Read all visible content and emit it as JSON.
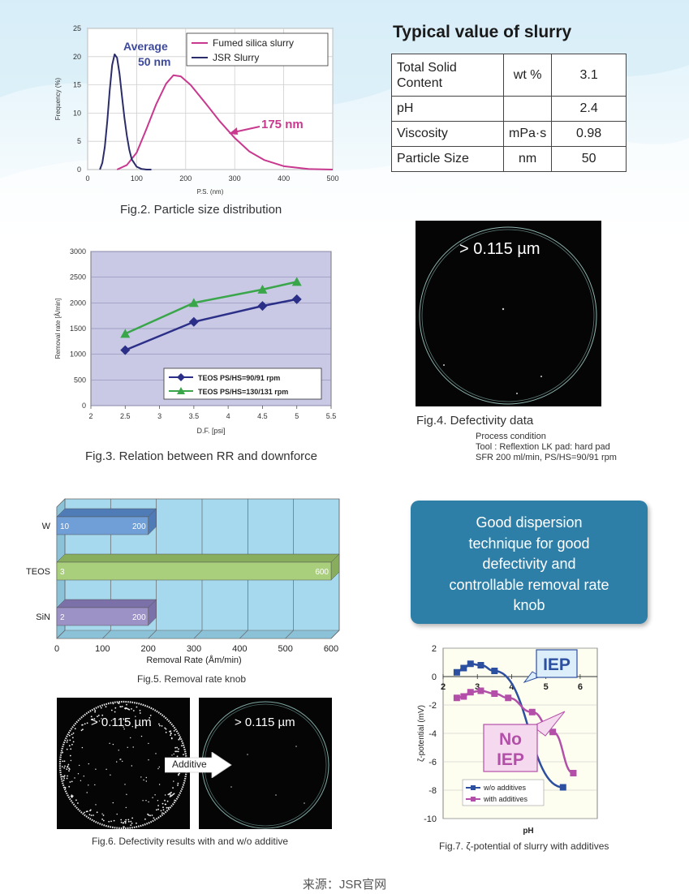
{
  "fig2": {
    "caption": "Fig.2. Particle size distribution",
    "xlabel": "P.S. (nm)",
    "ylabel": "Frequency (%)",
    "xticks": [
      "0",
      "100",
      "200",
      "300",
      "400",
      "500"
    ],
    "yticks": [
      "0",
      "5",
      "10",
      "15",
      "20",
      "25"
    ],
    "legend": [
      "Fumed silica slurry",
      "JSR Slurry"
    ],
    "ann_avg1": "Average",
    "ann_avg2": "50 nm",
    "ann_175": "175 nm",
    "colors": {
      "fumed": "#c8388e",
      "jsr": "#2b2d6b"
    }
  },
  "table": {
    "title": "Typical value of slurry",
    "rows": [
      {
        "label": "Total Solid Content",
        "unit": "wt %",
        "value": "3.1"
      },
      {
        "label": "pH",
        "unit": "",
        "value": "2.4"
      },
      {
        "label": "Viscosity",
        "unit": "mPa·s",
        "value": "0.98"
      },
      {
        "label": "Particle Size",
        "unit": "nm",
        "value": "50"
      }
    ]
  },
  "fig3": {
    "caption": "Fig.3. Relation between RR and downforce",
    "xlabel": "D.F. [psi]",
    "ylabel": "Removal rate [Å/min]",
    "xticks": [
      "2",
      "2.5",
      "3",
      "3.5",
      "4",
      "4.5",
      "5",
      "5.5"
    ],
    "yticks": [
      "0",
      "500",
      "1000",
      "1500",
      "2000",
      "2500",
      "3000"
    ],
    "legend": [
      "TEOS PS/HS=90/91 rpm",
      "TEOS PS/HS=130/131 rpm"
    ],
    "colors": {
      "s1": "#2b2f87",
      "s2": "#3aa64a"
    }
  },
  "fig4": {
    "label": "> 0.115 µm",
    "caption": "Fig.4. Defectivity data",
    "cond1": "Process condition",
    "cond2": "Tool : Reflextion LK pad: hard pad",
    "cond3": "SFR 200 ml/min, PS/HS=90/91 rpm"
  },
  "fig5": {
    "caption": "Fig.5. Removal rate knob",
    "xlabel": "Removal Rate (Åm/min)",
    "xticks": [
      "0",
      "100",
      "200",
      "300",
      "400",
      "500",
      "600"
    ],
    "categories": [
      "W",
      "TEOS",
      "SiN"
    ],
    "labels_left": [
      "10",
      "3",
      "2"
    ],
    "labels_right": [
      "200",
      "600",
      "200"
    ]
  },
  "good_box": {
    "lines": [
      "Good dispersion",
      "technique for good",
      "defectivity and",
      "controllable removal rate",
      "knob"
    ]
  },
  "fig6": {
    "label_left": "> 0.115 µm",
    "label_right": "> 0.115 µm",
    "arrow": "Additive",
    "caption": "Fig.6. Defectivity results with and w/o additive"
  },
  "fig7": {
    "caption": "Fig.7. ζ-potential of slurry with additives",
    "xlabel": "pH",
    "ylabel": "ζ-potential (mV)",
    "xticks": [
      "2",
      "3",
      "4",
      "5",
      "6"
    ],
    "yticks": [
      "2",
      "0",
      "-2",
      "-4",
      "-6",
      "-8",
      "-10"
    ],
    "legend": [
      "w/o additives",
      "with additives"
    ],
    "iep": "IEP",
    "noiep1": "No",
    "noiep2": "IEP",
    "colors": {
      "s1": "#2d4fa0",
      "s2": "#b34fa8"
    }
  },
  "source": "来源：JSR官网",
  "chart_data": [
    {
      "type": "line",
      "title": "Fig.2. Particle size distribution",
      "xlabel": "P.S. (nm)",
      "ylabel": "Frequency (%)",
      "xlim": [
        0,
        500
      ],
      "ylim": [
        0,
        25
      ],
      "grid": true,
      "legend_position": "top-right",
      "series": [
        {
          "name": "Fumed silica slurry",
          "x": [
            60,
            80,
            100,
            120,
            140,
            160,
            175,
            190,
            210,
            240,
            270,
            300,
            330,
            360,
            400,
            450,
            500
          ],
          "values": [
            0,
            0.8,
            3.0,
            7.2,
            11.6,
            15.2,
            16.7,
            16.5,
            15.0,
            11.8,
            8.5,
            5.6,
            3.2,
            1.7,
            0.6,
            0.1,
            0
          ]
        },
        {
          "name": "JSR Slurry",
          "x": [
            25,
            30,
            35,
            40,
            45,
            50,
            55,
            60,
            65,
            70,
            75,
            80,
            85,
            90,
            100,
            110,
            120,
            130
          ],
          "values": [
            0,
            1.2,
            4.0,
            8.5,
            14.0,
            18.5,
            20.4,
            19.8,
            17.0,
            13.0,
            9.2,
            6.0,
            3.5,
            1.8,
            0.5,
            0.1,
            0,
            0
          ]
        }
      ]
    },
    {
      "type": "line",
      "title": "Fig.3. Relation between RR and downforce",
      "xlabel": "D.F. [psi]",
      "ylabel": "Removal rate [Å/min]",
      "xlim": [
        2,
        5.5
      ],
      "ylim": [
        0,
        3000
      ],
      "grid": true,
      "legend_position": "bottom-right",
      "series": [
        {
          "name": "TEOS PS/HS=90/91 rpm",
          "x": [
            2.5,
            3.5,
            4.5,
            5
          ],
          "values": [
            1080,
            1630,
            1940,
            2070
          ]
        },
        {
          "name": "TEOS PS/HS=130/131 rpm",
          "x": [
            2.5,
            3.5,
            4.5,
            5
          ],
          "values": [
            1400,
            2000,
            2260,
            2410
          ]
        }
      ]
    },
    {
      "type": "bar",
      "title": "Fig.5. Removal rate knob",
      "orientation": "horizontal",
      "xlabel": "Removal Rate (Åm/min)",
      "xlim": [
        0,
        600
      ],
      "categories": [
        "W",
        "TEOS",
        "SiN"
      ],
      "series": [
        {
          "name": "min",
          "values": [
            10,
            3,
            2
          ]
        },
        {
          "name": "max",
          "values": [
            200,
            600,
            200
          ]
        }
      ]
    },
    {
      "type": "line",
      "title": "Fig.7. ζ-potential of slurry with additives",
      "xlabel": "pH",
      "ylabel": "ζ-potential (mV)",
      "xlim": [
        2,
        6.5
      ],
      "ylim": [
        -10,
        2
      ],
      "grid": true,
      "legend_position": "bottom-left",
      "series": [
        {
          "name": "w/o additives",
          "x": [
            2.4,
            2.6,
            2.8,
            3.1,
            3.5,
            5.5
          ],
          "values": [
            0.3,
            0.6,
            0.9,
            0.8,
            0.4,
            -7.8
          ]
        },
        {
          "name": "with additives",
          "x": [
            2.4,
            2.6,
            2.8,
            3.1,
            3.5,
            3.9,
            4.6,
            5.2,
            5.8
          ],
          "values": [
            -1.5,
            -1.4,
            -1.1,
            -1.0,
            -1.2,
            -1.5,
            -2.5,
            -3.9,
            -6.8
          ]
        }
      ]
    }
  ]
}
